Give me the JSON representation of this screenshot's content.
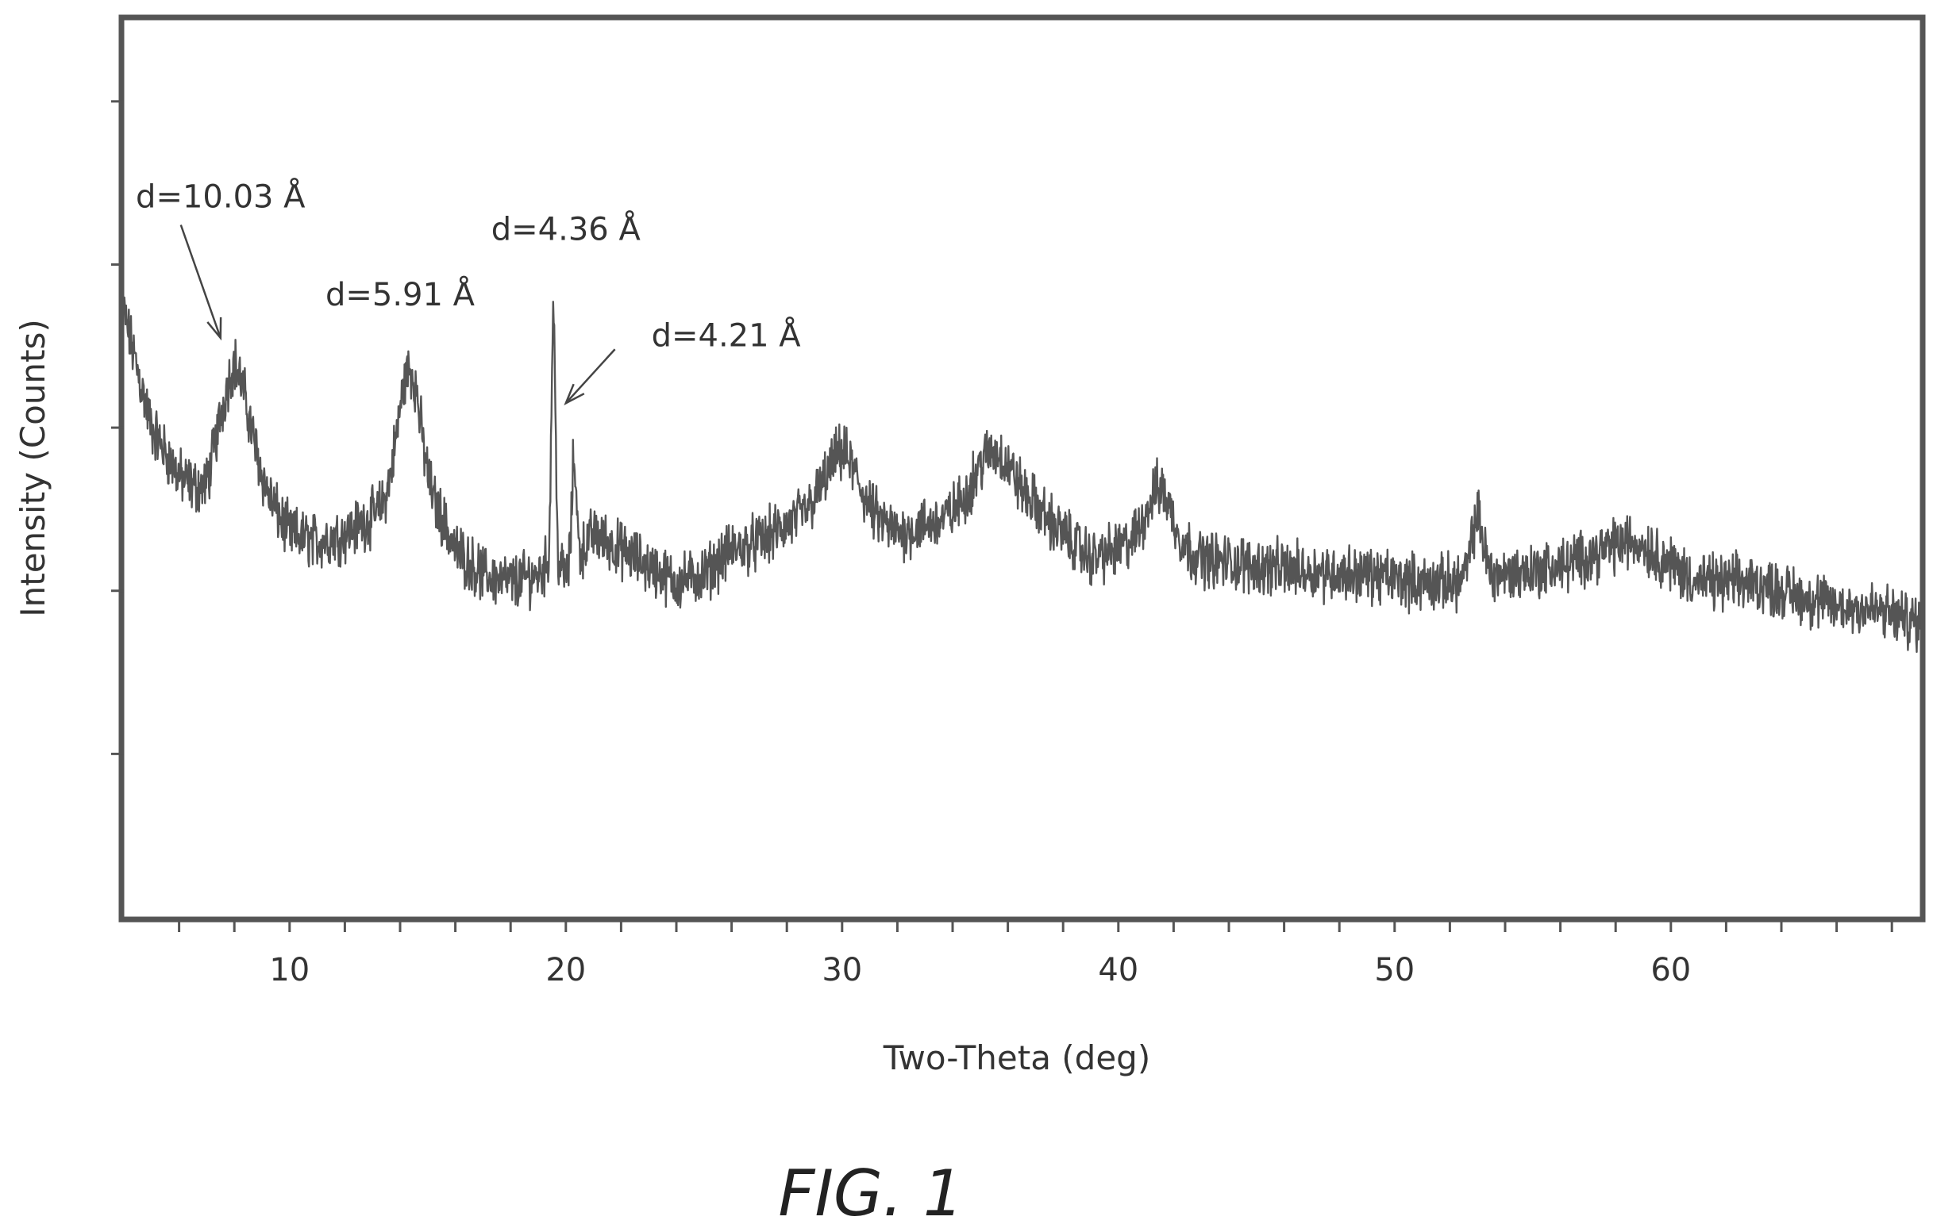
{
  "chart_data": {
    "type": "line",
    "title": "",
    "xlabel": "Two-Theta (deg)",
    "ylabel": "Intensity (Counts)",
    "xlim": [
      4,
      69
    ],
    "ylim": [
      0,
      5.5
    ],
    "x_major_ticks": [
      10,
      20,
      30,
      40,
      50,
      60
    ],
    "x_tick_labels": [
      "10",
      "20",
      "30",
      "40",
      "50",
      "60"
    ],
    "x_minor_step": 2,
    "y_ticks": [
      1,
      2,
      3,
      4,
      5
    ],
    "y_tick_labels": [],
    "grid": false,
    "legend": "none",
    "series": [
      {
        "color": "#555555",
        "baseline": [
          [
            4.0,
            3.7
          ],
          [
            5.0,
            3.0
          ],
          [
            6.0,
            2.7
          ],
          [
            7.0,
            2.55
          ],
          [
            8.0,
            2.95
          ],
          [
            9.0,
            2.6
          ],
          [
            10.0,
            2.35
          ],
          [
            11.0,
            2.3
          ],
          [
            12.0,
            2.35
          ],
          [
            13.0,
            2.45
          ],
          [
            14.0,
            2.55
          ],
          [
            14.6,
            2.65
          ],
          [
            15.5,
            2.45
          ],
          [
            16.0,
            2.25
          ],
          [
            17.0,
            2.1
          ],
          [
            18.0,
            2.05
          ],
          [
            19.0,
            2.1
          ],
          [
            19.5,
            2.2
          ],
          [
            20.0,
            2.1
          ],
          [
            21.0,
            2.35
          ],
          [
            22.0,
            2.25
          ],
          [
            23.0,
            2.15
          ],
          [
            24.0,
            2.05
          ],
          [
            25.0,
            2.1
          ],
          [
            26.0,
            2.25
          ],
          [
            27.0,
            2.3
          ],
          [
            28.0,
            2.4
          ],
          [
            29.0,
            2.5
          ],
          [
            30.0,
            2.6
          ],
          [
            31.0,
            2.45
          ],
          [
            32.0,
            2.35
          ],
          [
            33.0,
            2.4
          ],
          [
            34.0,
            2.45
          ],
          [
            35.0,
            2.5
          ],
          [
            36.0,
            2.5
          ],
          [
            37.0,
            2.5
          ],
          [
            38.0,
            2.35
          ],
          [
            39.0,
            2.2
          ],
          [
            40.0,
            2.25
          ],
          [
            41.0,
            2.35
          ],
          [
            42.0,
            2.3
          ],
          [
            43.0,
            2.2
          ],
          [
            45.0,
            2.15
          ],
          [
            47.0,
            2.12
          ],
          [
            49.0,
            2.1
          ],
          [
            51.0,
            2.05
          ],
          [
            52.0,
            2.05
          ],
          [
            53.0,
            2.1
          ],
          [
            54.0,
            2.1
          ],
          [
            56.0,
            2.15
          ],
          [
            57.0,
            2.2
          ],
          [
            58.0,
            2.2
          ],
          [
            59.0,
            2.2
          ],
          [
            60.0,
            2.15
          ],
          [
            61.0,
            2.05
          ],
          [
            62.0,
            2.05
          ],
          [
            63.0,
            2.05
          ],
          [
            64.0,
            2.0
          ],
          [
            65.0,
            1.95
          ],
          [
            66.0,
            1.9
          ],
          [
            67.0,
            1.9
          ],
          [
            68.0,
            1.85
          ],
          [
            69.0,
            1.8
          ]
        ],
        "peaks": [
          {
            "center": 8.0,
            "height": 0.45,
            "width": 0.6
          },
          {
            "center": 14.3,
            "height": 0.75,
            "width": 0.4
          },
          {
            "center": 19.55,
            "height": 1.55,
            "width": 0.07
          },
          {
            "center": 20.3,
            "height": 0.65,
            "width": 0.08
          },
          {
            "center": 30.0,
            "height": 0.25,
            "width": 0.6
          },
          {
            "center": 35.5,
            "height": 0.35,
            "width": 0.7
          },
          {
            "center": 41.5,
            "height": 0.3,
            "width": 0.4
          },
          {
            "center": 53.0,
            "height": 0.35,
            "width": 0.2
          },
          {
            "center": 58.5,
            "height": 0.1,
            "width": 0.8
          }
        ],
        "noise_amplitude": 0.26
      }
    ],
    "annotations": [
      {
        "text": "d=10.03 Å",
        "x": 7.5,
        "y": 4.35,
        "arrow_to": [
          7.5,
          3.55
        ]
      },
      {
        "text": "d=5.91 Å",
        "x": 14.0,
        "y": 3.75
      },
      {
        "text": "d=4.36 Å",
        "x": 20.0,
        "y": 4.15
      },
      {
        "text": "d=4.21 Å",
        "x": 25.8,
        "y": 3.5,
        "arrow_to": [
          20.0,
          3.15
        ]
      }
    ],
    "caption": "FIG. 1"
  }
}
